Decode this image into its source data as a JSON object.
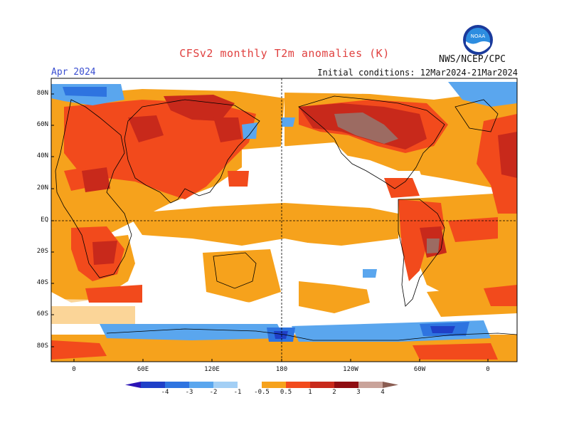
{
  "title": "CFSv2 monthly T2m anomalies (K)",
  "agency": "NWS/NCEP/CPC",
  "logo_text": "NOAA",
  "forecast_month": "Apr 2024",
  "initial_conditions": "Initial conditions: 12Mar2024-21Mar2024",
  "lat_labels": [
    "80N",
    "60N",
    "40N",
    "20N",
    "EQ",
    "20S",
    "40S",
    "60S",
    "80S"
  ],
  "lon_labels": [
    "0",
    "60E",
    "120E",
    "180",
    "120W",
    "60W",
    "0"
  ],
  "colorbar": {
    "labels": [
      "-4",
      "-3",
      "-2",
      "-1",
      "-0.5",
      "0.5",
      "1",
      "2",
      "3",
      "4"
    ],
    "colors": [
      "#2b14b5",
      "#1f40c8",
      "#2e74e0",
      "#5aa6ee",
      "#a3cff5",
      "#ffffff",
      "#f6a21c",
      "#f24a1c",
      "#c8291b",
      "#8f0d12",
      "#c9a39a",
      "#8a5d52"
    ]
  }
}
